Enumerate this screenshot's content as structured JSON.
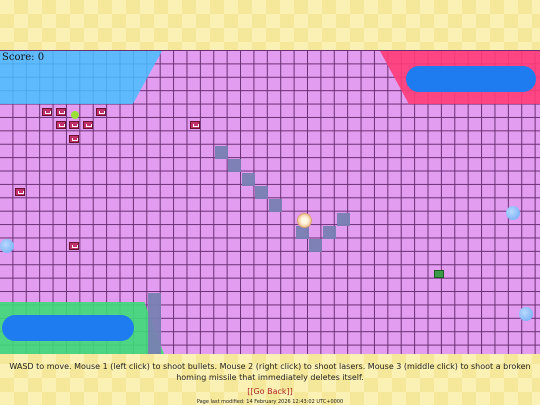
{
  "hud": {
    "score_label": "Score: 0"
  },
  "instructions": "WASD to move. Mouse 1 (left click) to shoot bullets. Mouse 2 (right click) to shoot lasers. Mouse 3 (middle click) to shoot a broken homing missile that immediately deletes itself.",
  "go_back_label": "[[Go Back]]",
  "last_modified": "Page last modified: 14 February 2026 12:43:02 UTC+0000",
  "colors": {
    "board": "#e39df0",
    "grid_line": "#6a2e74",
    "blue_zone": "#46beff",
    "red_zone": "#ff3c78",
    "green_zone": "#3cdc78",
    "pill": "#1e7bf0",
    "wall": "#7880b2",
    "enemy": "#c0306a"
  },
  "entities": {
    "player": "player-orb",
    "enemies": "pink-crate-enemy",
    "orbs": "blue-orb",
    "pickup": "green-crate-pickup"
  }
}
